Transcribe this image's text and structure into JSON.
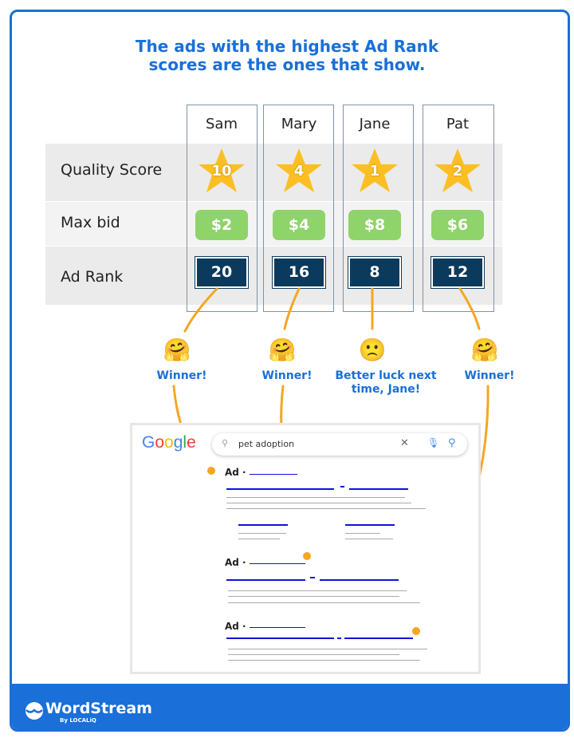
{
  "title": {
    "line1": "The ads with the highest Ad Rank",
    "line2": "scores are the ones that show."
  },
  "rows": {
    "quality_score": "Quality Score",
    "max_bid": "Max bid",
    "ad_rank": "Ad Rank"
  },
  "advertisers": [
    {
      "name": "Sam",
      "quality_score": "10",
      "max_bid": "$2",
      "ad_rank": "20",
      "emoji": "🤗",
      "result": "Winner!"
    },
    {
      "name": "Mary",
      "quality_score": "4",
      "max_bid": "$4",
      "ad_rank": "16",
      "emoji": "🤗",
      "result": "Winner!"
    },
    {
      "name": "Jane",
      "quality_score": "1",
      "max_bid": "$8",
      "ad_rank": "8",
      "emoji": "🙁",
      "result": "Better luck next time, Jane!"
    },
    {
      "name": "Pat",
      "quality_score": "2",
      "max_bid": "$6",
      "ad_rank": "12",
      "emoji": "🤗",
      "result": "Winner!"
    }
  ],
  "serp": {
    "logo": "Google",
    "query": "pet adoption",
    "ad_label": "Ad ·"
  },
  "footer": {
    "brand": "WordStream",
    "byline": "By LOCALiQ"
  },
  "colors": {
    "accent": "#1a6fd8",
    "star": "#fbbf24",
    "bid": "#8fd36b",
    "rank": "#0b3a5c",
    "connector": "#f5a623"
  }
}
